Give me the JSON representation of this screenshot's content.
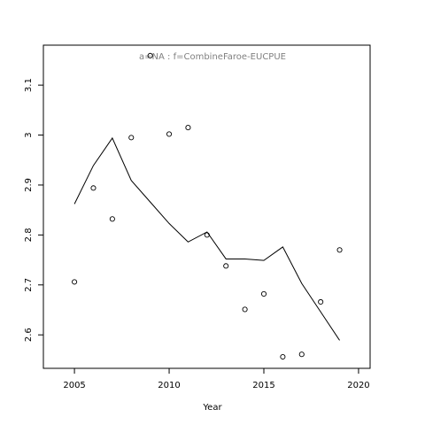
{
  "chart_data": {
    "type": "line",
    "title": "a=NA  :  f=CombineFaroe-EUCPUE",
    "x_label": "Year",
    "x": [
      2005,
      2006,
      2007,
      2008,
      2009,
      2010,
      2011,
      2012,
      2013,
      2014,
      2015,
      2016,
      2017,
      2018,
      2019
    ],
    "series": [
      {
        "style": "points",
        "color": "#000000",
        "values": [
          2.706,
          2.894,
          2.832,
          2.995,
          3.159,
          3.002,
          3.015,
          2.8,
          2.738,
          2.651,
          2.682,
          2.556,
          2.561,
          2.666,
          2.77
        ]
      },
      {
        "style": "line",
        "color": "#000000",
        "values": [
          2.862,
          2.939,
          2.994,
          2.909,
          2.866,
          2.823,
          2.786,
          2.806,
          2.752,
          2.752,
          2.749,
          2.776,
          2.703,
          2.646,
          2.589
        ]
      }
    ],
    "xlim": [
      2003.36,
      2020.61
    ],
    "xticks": [
      2005,
      2010,
      2015,
      2020
    ],
    "ylim": [
      2.533,
      3.18
    ],
    "yticks": [
      2.6,
      2.7,
      2.8,
      2.9,
      3.0,
      3.1
    ],
    "title_color": "#808080"
  }
}
